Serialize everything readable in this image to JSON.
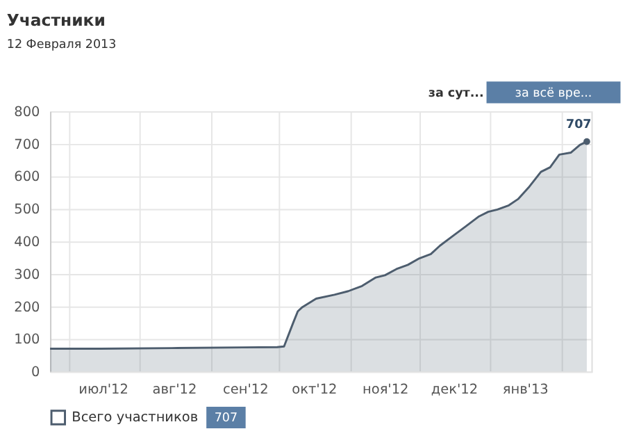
{
  "chart_data": {
    "type": "area",
    "title": "Участники",
    "subtitle": "12 Февраля 2013",
    "x": [
      "2012-06-23",
      "2012-07-15",
      "2012-08-15",
      "2012-09-15",
      "2012-09-30",
      "2012-10-03",
      "2012-10-07",
      "2012-10-09",
      "2012-10-11",
      "2012-10-17",
      "2012-10-25",
      "2012-10-31",
      "2012-11-06",
      "2012-11-12",
      "2012-11-16",
      "2012-11-21",
      "2012-11-26",
      "2012-12-01",
      "2012-12-06",
      "2012-12-10",
      "2012-12-16",
      "2012-12-21",
      "2012-12-27",
      "2012-12-31",
      "2013-01-04",
      "2013-01-09",
      "2013-01-13",
      "2013-01-18",
      "2013-01-23",
      "2013-01-27",
      "2013-01-31",
      "2013-02-05",
      "2013-02-09",
      "2013-02-12"
    ],
    "series": [
      {
        "name": "Всего участников",
        "color": "#4d5d6e",
        "values": [
          70,
          70,
          72,
          74,
          75,
          77,
          150,
          185,
          198,
          224,
          236,
          247,
          263,
          289,
          296,
          315,
          328,
          348,
          361,
          387,
          419,
          445,
          477,
          491,
          498,
          511,
          530,
          569,
          614,
          628,
          667,
          673,
          697,
          707
        ]
      }
    ],
    "xlim": [
      "2012-06-23",
      "2013-02-14"
    ],
    "xticks": [
      {
        "value": "2012-07-01",
        "label": null
      },
      {
        "value": "2012-07-16",
        "label": "июл'12"
      },
      {
        "value": "2012-08-01",
        "label": null
      },
      {
        "value": "2012-08-16",
        "label": "авг'12"
      },
      {
        "value": "2012-09-01",
        "label": null
      },
      {
        "value": "2012-09-16",
        "label": "сен'12"
      },
      {
        "value": "2012-10-01",
        "label": null
      },
      {
        "value": "2012-10-16",
        "label": "окт'12"
      },
      {
        "value": "2012-11-01",
        "label": null
      },
      {
        "value": "2012-11-16",
        "label": "ноя'12"
      },
      {
        "value": "2012-12-01",
        "label": null
      },
      {
        "value": "2012-12-16",
        "label": "дек'12"
      },
      {
        "value": "2013-01-01",
        "label": null
      },
      {
        "value": "2013-01-16",
        "label": "янв'13"
      },
      {
        "value": "2013-02-01",
        "label": null
      }
    ],
    "ylim": [
      0,
      800
    ],
    "yticks": [
      0,
      100,
      200,
      300,
      400,
      500,
      600,
      700,
      800
    ],
    "grid": true,
    "legend": "bottom left",
    "marker": "none",
    "line_style": "solid",
    "annotations": [
      "за сут...",
      "за всё вре...",
      {
        "text": "707",
        "x": "2013-02-12",
        "y": 707
      },
      "707"
    ]
  }
}
